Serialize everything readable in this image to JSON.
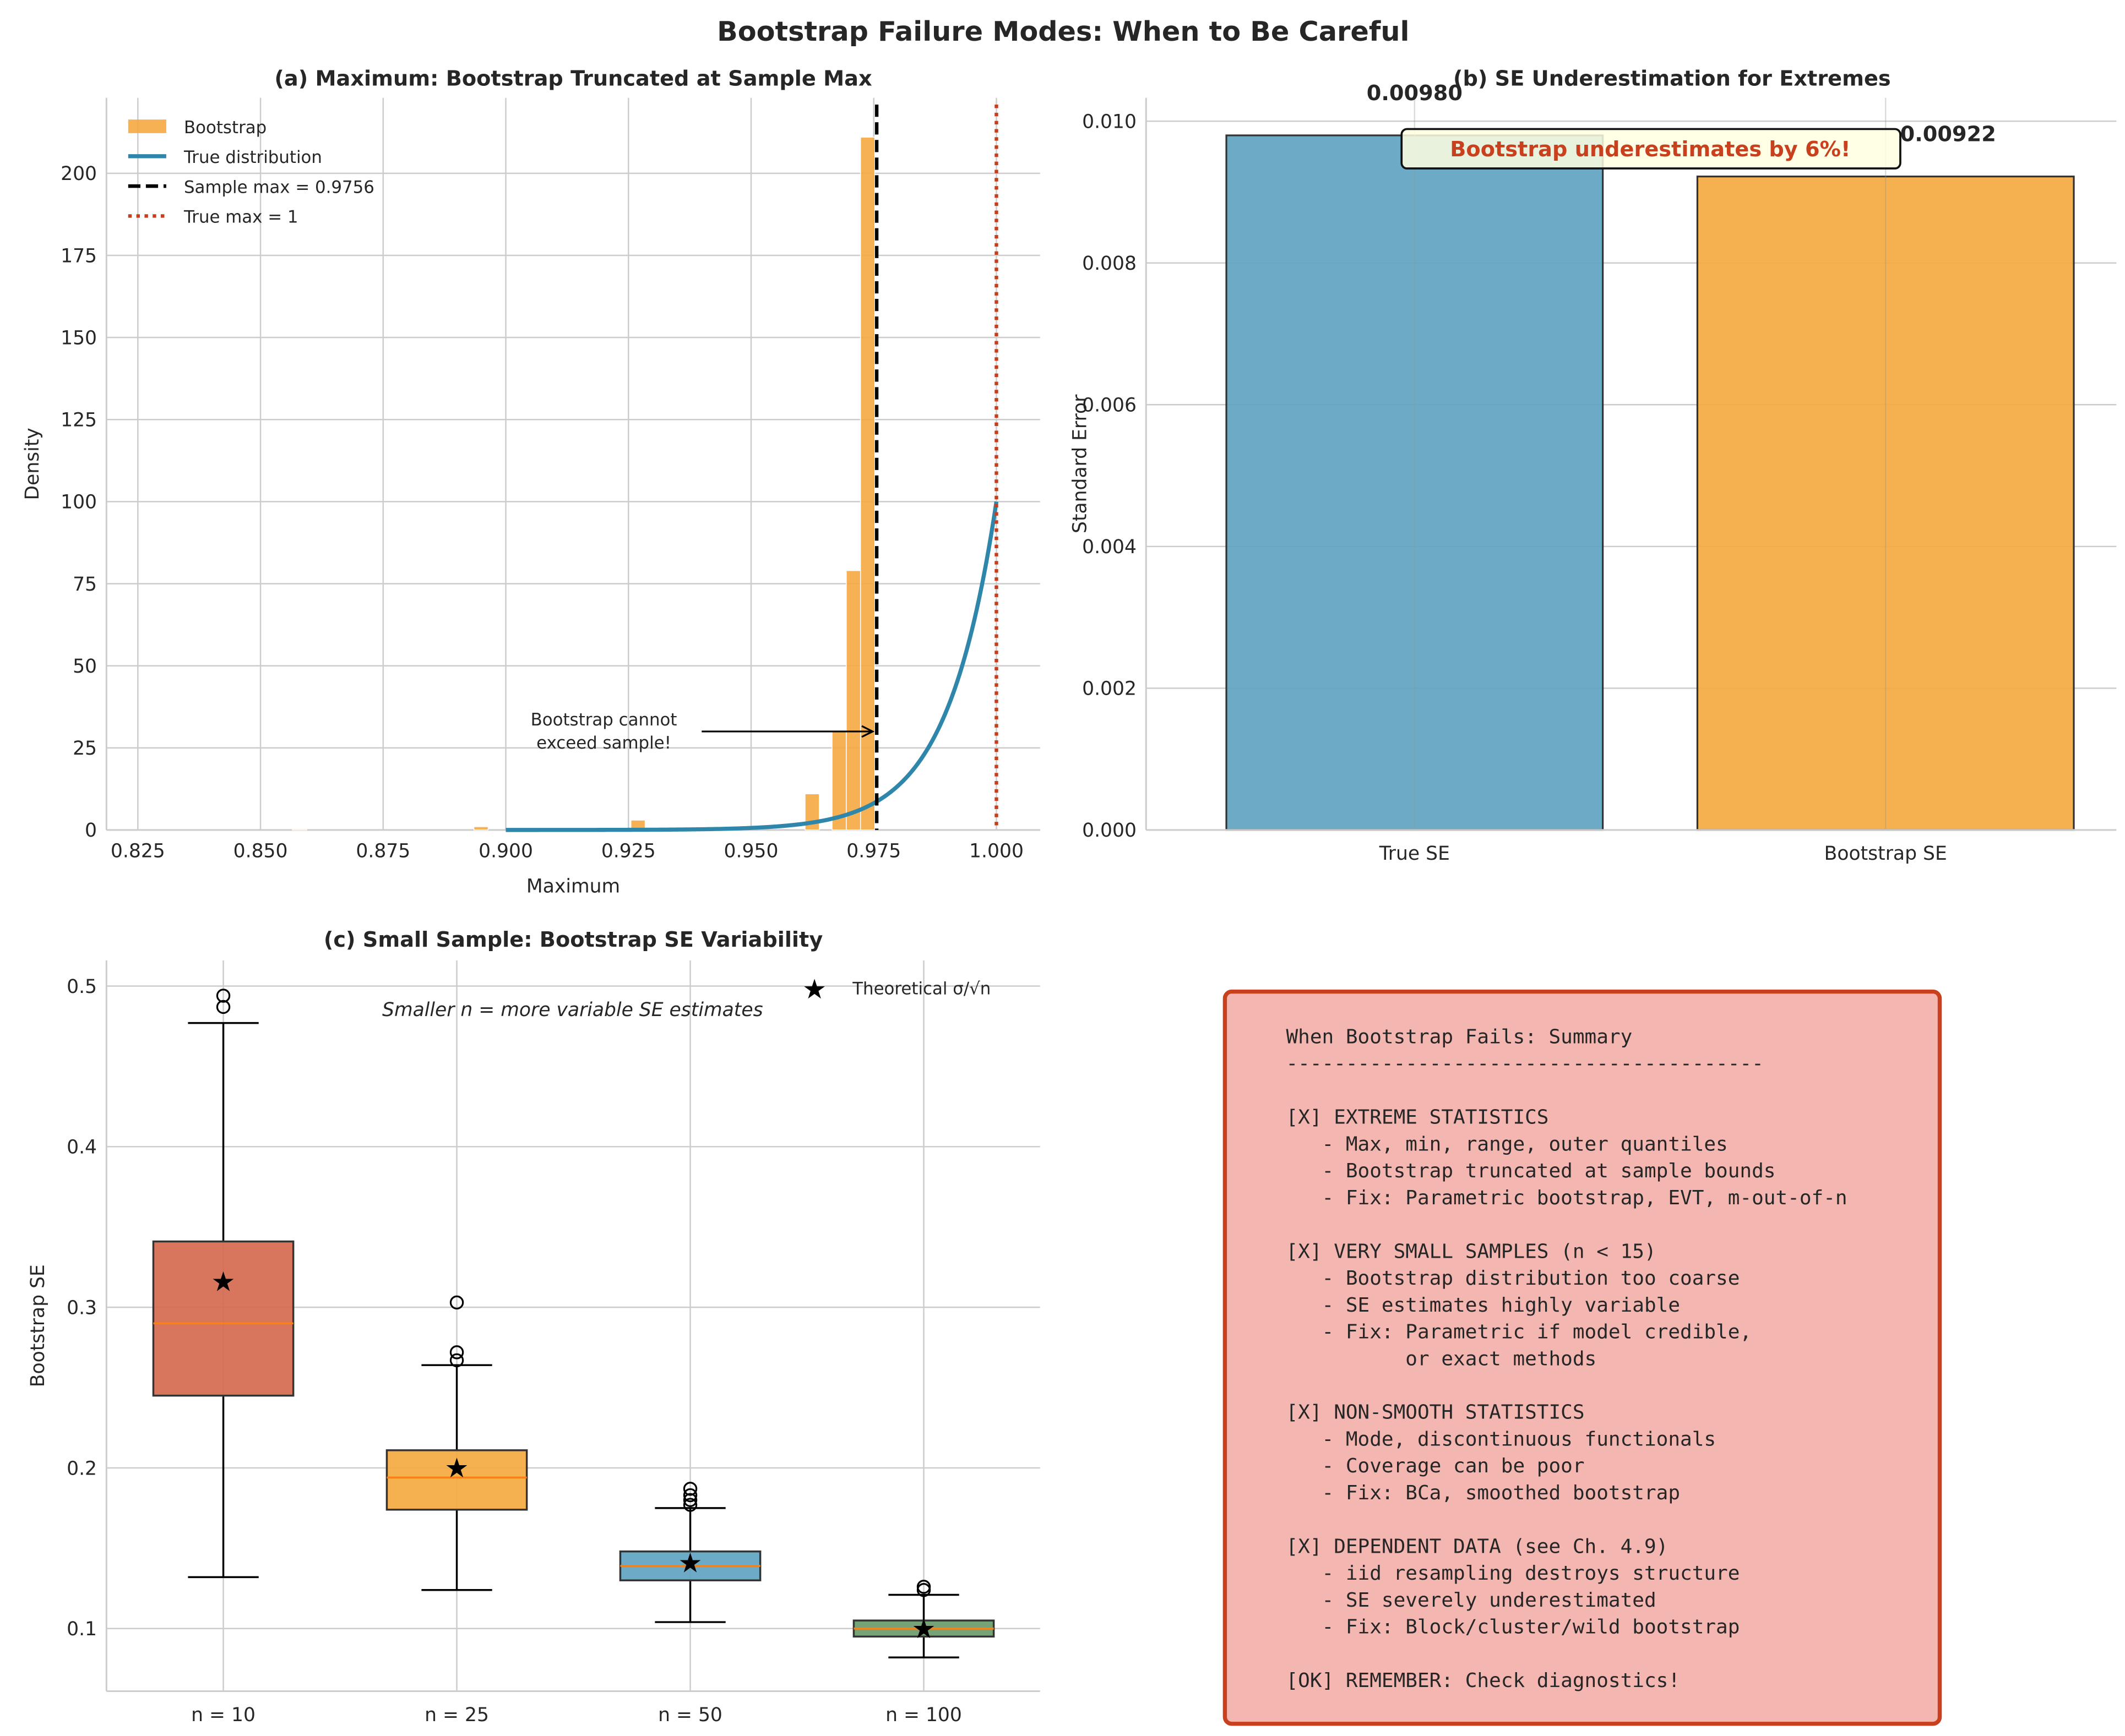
{
  "suptitle": "Bootstrap Failure Modes: When to Be Careful",
  "colors": {
    "orange": "#F4A940",
    "blue": "#2E86AB",
    "red": "#C73E1D",
    "box_red": "#D4694F",
    "box_orange": "#F4A940",
    "box_blue": "#5FA3C0",
    "box_green": "#6A9A6C",
    "median": "#FF7F0E"
  },
  "chart_data": [
    {
      "type": "bar",
      "title": "(a) Maximum: Bootstrap Truncated at Sample Max",
      "xlabel": "Maximum",
      "ylabel": "Density",
      "xlim": [
        0.8186,
        1.0089
      ],
      "ylim": [
        0,
        223
      ],
      "xticks": [
        "0.825",
        "0.850",
        "0.875",
        "0.900",
        "0.925",
        "0.950",
        "0.975",
        "1.000"
      ],
      "xtick_values": [
        0.825,
        0.85,
        0.875,
        0.9,
        0.925,
        0.95,
        0.975,
        1.0
      ],
      "yticks": [
        "0",
        "25",
        "50",
        "75",
        "100",
        "125",
        "150",
        "175",
        "200"
      ],
      "ytick_values": [
        0,
        25,
        50,
        75,
        100,
        125,
        150,
        175,
        200
      ],
      "grid": true,
      "histogram": {
        "name": "Bootstrap",
        "bin_width": 0.0029,
        "bin_starts": [
          0.8565,
          0.8935,
          0.9255,
          0.961,
          0.9665,
          0.9694,
          0.9723
        ],
        "density": [
          0.3,
          1,
          3,
          11,
          30,
          79,
          211
        ]
      },
      "true_distribution": {
        "name": "True distribution",
        "formula": "n*x^(n-1)",
        "n": 100,
        "x_range": [
          0.9,
          1.0
        ]
      },
      "vlines": [
        {
          "name": "Sample max = 0.9756",
          "x": 0.9756,
          "style": "dashed"
        },
        {
          "name": "True max = 1",
          "x": 1.0,
          "style": "dotted"
        }
      ],
      "legend": [
        "Bootstrap",
        "True distribution",
        "Sample max = 0.9756",
        "True max = 1"
      ],
      "legend_position": "upper-left",
      "annotation": {
        "lines": [
          "Bootstrap cannot",
          "exceed sample!"
        ],
        "arrow_to": [
          0.9756,
          30
        ]
      }
    },
    {
      "type": "bar",
      "title": "(b) SE Underestimation for Extremes",
      "ylabel": "Standard Error",
      "categories": [
        "True SE",
        "Bootstrap SE"
      ],
      "values": [
        0.0098,
        0.00922
      ],
      "value_labels": [
        "0.00980",
        "0.00922"
      ],
      "ylim": [
        0,
        0.01033
      ],
      "xlim": [
        -0.57,
        1.49
      ],
      "yticks": [
        "0.000",
        "0.002",
        "0.004",
        "0.006",
        "0.008",
        "0.010"
      ],
      "ytick_values": [
        0,
        0.002,
        0.004,
        0.006,
        0.008,
        0.01
      ],
      "grid": true,
      "annotation": "Bootstrap underestimates by 6%!"
    },
    {
      "type": "box",
      "title": "(c) Small Sample: Bootstrap SE Variability",
      "ylabel": "Bootstrap SE",
      "categories": [
        "n = 10",
        "n = 25",
        "n = 50",
        "n = 100"
      ],
      "ylim": [
        0.061,
        0.516
      ],
      "yticks": [
        "0.1",
        "0.2",
        "0.3",
        "0.4",
        "0.5"
      ],
      "ytick_values": [
        0.1,
        0.2,
        0.3,
        0.4,
        0.5
      ],
      "grid": true,
      "boxes": [
        {
          "whislo": 0.132,
          "q1": 0.245,
          "med": 0.29,
          "q3": 0.341,
          "whishi": 0.477,
          "fliers": [
            0.487,
            0.494
          ],
          "theoretical": 0.316
        },
        {
          "whislo": 0.124,
          "q1": 0.174,
          "med": 0.194,
          "q3": 0.211,
          "whishi": 0.264,
          "fliers": [
            0.267,
            0.272,
            0.303
          ],
          "theoretical": 0.2
        },
        {
          "whislo": 0.104,
          "q1": 0.13,
          "med": 0.139,
          "q3": 0.148,
          "whishi": 0.175,
          "fliers": [
            0.177,
            0.18,
            0.183,
            0.187
          ],
          "theoretical": 0.141
        },
        {
          "whislo": 0.082,
          "q1": 0.095,
          "med": 0.1,
          "q3": 0.105,
          "whishi": 0.121,
          "fliers": [
            0.124,
            0.126
          ],
          "theoretical": 0.1
        }
      ],
      "legend": [
        "Theoretical σ/√n"
      ],
      "legend_position": "upper-right",
      "annotation": "Smaller n = more variable SE estimates"
    }
  ],
  "summary_box": {
    "lines": [
      "When Bootstrap Fails: Summary",
      "----------------------------------------",
      "",
      "[X] EXTREME STATISTICS",
      "   - Max, min, range, outer quantiles",
      "   - Bootstrap truncated at sample bounds",
      "   - Fix: Parametric bootstrap, EVT, m-out-of-n",
      "",
      "[X] VERY SMALL SAMPLES (n < 15)",
      "   - Bootstrap distribution too coarse",
      "   - SE estimates highly variable",
      "   - Fix: Parametric if model credible,",
      "          or exact methods",
      "",
      "[X] NON-SMOOTH STATISTICS",
      "   - Mode, discontinuous functionals",
      "   - Coverage can be poor",
      "   - Fix: BCa, smoothed bootstrap",
      "",
      "[X] DEPENDENT DATA (see Ch. 4.9)",
      "   - iid resampling destroys structure",
      "   - SE severely underestimated",
      "   - Fix: Block/cluster/wild bootstrap",
      "",
      "[OK] REMEMBER: Check diagnostics!"
    ]
  }
}
